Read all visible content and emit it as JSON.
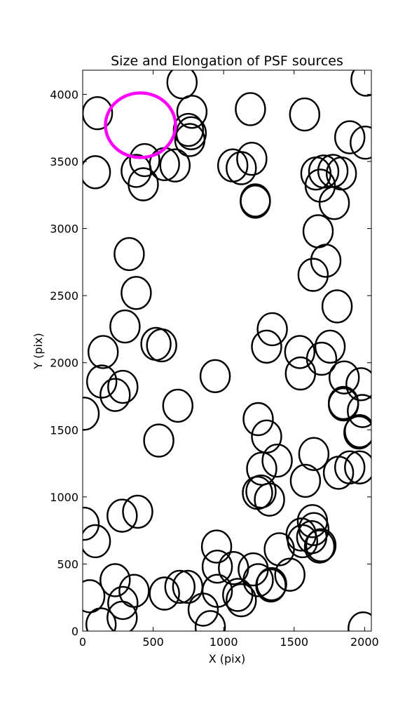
{
  "chart_data": {
    "type": "scatter",
    "title": "Size and Elongation of PSF sources",
    "xlabel": "X (pix)",
    "ylabel": "Y (pix)",
    "xlim": [
      0,
      2048
    ],
    "ylim": [
      0,
      4180
    ],
    "xticks": [
      0,
      500,
      1000,
      1500,
      2000
    ],
    "yticks": [
      0,
      500,
      1000,
      1500,
      2000,
      2500,
      3000,
      3500,
      4000
    ],
    "grid": false,
    "legend": "none",
    "source_color": "#000000",
    "highlight_color": "#ff00ff",
    "series": [
      {
        "marker": "ellipse",
        "values": [
          [
            705,
            4090
          ],
          [
            775,
            3870
          ],
          [
            580,
            3480
          ],
          [
            750,
            3735
          ],
          [
            770,
            3710
          ],
          [
            760,
            3660
          ],
          [
            655,
            3470
          ],
          [
            440,
            3510
          ],
          [
            380,
            3430
          ],
          [
            430,
            3330
          ],
          [
            90,
            3420
          ],
          [
            105,
            3860
          ],
          [
            1190,
            3890
          ],
          [
            1575,
            3850
          ],
          [
            1895,
            3680
          ],
          [
            2005,
            3640
          ],
          [
            2010,
            4110
          ],
          [
            1200,
            3520
          ],
          [
            1065,
            3470
          ],
          [
            1125,
            3450
          ],
          [
            1225,
            3210
          ],
          [
            1225,
            3200
          ],
          [
            1655,
            3410
          ],
          [
            1710,
            3425
          ],
          [
            1775,
            3430
          ],
          [
            1835,
            3410
          ],
          [
            1685,
            3320
          ],
          [
            1785,
            3190
          ],
          [
            1670,
            2980
          ],
          [
            1725,
            2760
          ],
          [
            1635,
            2655
          ],
          [
            1805,
            2420
          ],
          [
            330,
            2810
          ],
          [
            380,
            2520
          ],
          [
            300,
            2270
          ],
          [
            145,
            2080
          ],
          [
            520,
            2140
          ],
          [
            560,
            2130
          ],
          [
            1345,
            2250
          ],
          [
            1305,
            2120
          ],
          [
            1540,
            2080
          ],
          [
            1545,
            1920
          ],
          [
            1695,
            2030
          ],
          [
            1755,
            2120
          ],
          [
            940,
            1900
          ],
          [
            135,
            1860
          ],
          [
            230,
            1760
          ],
          [
            285,
            1820
          ],
          [
            10,
            1620
          ],
          [
            675,
            1680
          ],
          [
            540,
            1420
          ],
          [
            1245,
            1580
          ],
          [
            1305,
            1450
          ],
          [
            1380,
            1270
          ],
          [
            1855,
            1890
          ],
          [
            1975,
            1840
          ],
          [
            1850,
            1700
          ],
          [
            1985,
            1640
          ],
          [
            1965,
            1490
          ],
          [
            1640,
            1320
          ],
          [
            1580,
            1120
          ],
          [
            1270,
            1210
          ],
          [
            1265,
            1040
          ],
          [
            1325,
            980
          ],
          [
            1815,
            1180
          ],
          [
            1895,
            1220
          ],
          [
            1965,
            1220
          ],
          [
            1850,
            1690
          ],
          [
            1960,
            1480
          ],
          [
            10,
            800
          ],
          [
            90,
            670
          ],
          [
            280,
            860
          ],
          [
            390,
            890
          ],
          [
            1630,
            820
          ],
          [
            1640,
            760
          ],
          [
            1625,
            700
          ],
          [
            1560,
            670
          ],
          [
            1680,
            630
          ],
          [
            1690,
            640
          ],
          [
            950,
            630
          ],
          [
            955,
            480
          ],
          [
            1070,
            470
          ],
          [
            1210,
            460
          ],
          [
            1245,
            380
          ],
          [
            1335,
            340
          ],
          [
            1395,
            610
          ],
          [
            1470,
            420
          ],
          [
            1340,
            350
          ],
          [
            1125,
            230
          ],
          [
            955,
            300
          ],
          [
            855,
            160
          ],
          [
            905,
            30
          ],
          [
            690,
            330
          ],
          [
            745,
            330
          ],
          [
            580,
            280
          ],
          [
            365,
            300
          ],
          [
            285,
            210
          ],
          [
            280,
            100
          ],
          [
            230,
            380
          ],
          [
            130,
            50
          ],
          [
            50,
            260
          ],
          [
            1990,
            20
          ],
          [
            1550,
            720
          ],
          [
            1100,
            270
          ],
          [
            1240,
            1030
          ]
        ]
      },
      {
        "marker": "ellipse-highlight",
        "values": [
          [
            410,
            3770
          ]
        ]
      }
    ]
  }
}
